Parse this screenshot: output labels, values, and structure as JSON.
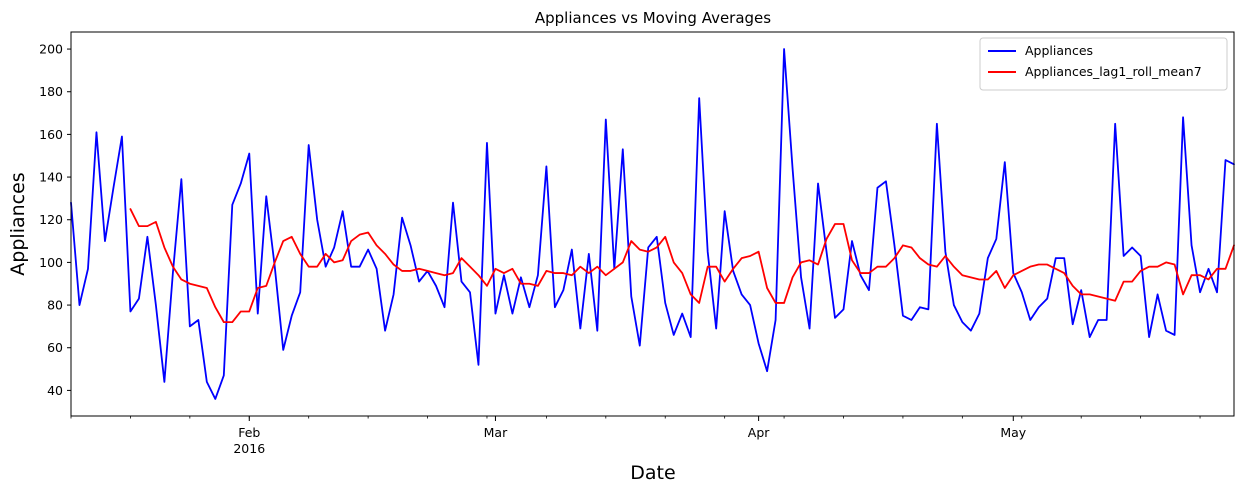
{
  "chart_data": {
    "type": "line",
    "title": "Appliances vs Moving Averages",
    "xlabel": "Date",
    "ylabel": "Appliances",
    "x_start": "2016-01-11",
    "x_end": "2016-05-27",
    "x_month_ticks": [
      {
        "date": "2016-02-01",
        "label": "Feb",
        "sublabel": "2016"
      },
      {
        "date": "2016-03-01",
        "label": "Mar",
        "sublabel": ""
      },
      {
        "date": "2016-04-01",
        "label": "Apr",
        "sublabel": ""
      },
      {
        "date": "2016-05-01",
        "label": "May",
        "sublabel": ""
      }
    ],
    "ylim": [
      28,
      208
    ],
    "yticks": [
      40,
      60,
      80,
      100,
      120,
      140,
      160,
      180,
      200
    ],
    "grid": false,
    "legend_position": "upper-right",
    "series": [
      {
        "name": "Appliances",
        "color": "#0000ff",
        "values": [
          128,
          80,
          97,
          161,
          110,
          135,
          159,
          77,
          83,
          112,
          80,
          44,
          95,
          139,
          70,
          73,
          44,
          36,
          47,
          127,
          137,
          151,
          76,
          131,
          98,
          59,
          75,
          86,
          155,
          120,
          98,
          107,
          124,
          98,
          98,
          106,
          97,
          68,
          85,
          121,
          108,
          91,
          96,
          89,
          79,
          128,
          91,
          86,
          52,
          156,
          76,
          94,
          76,
          93,
          79,
          94,
          145,
          79,
          87,
          106,
          69,
          104,
          68,
          167,
          97,
          153,
          84,
          61,
          107,
          112,
          81,
          66,
          76,
          65,
          177,
          105,
          69,
          124,
          96,
          85,
          80,
          62,
          49,
          73,
          200,
          144,
          93,
          69,
          137,
          105,
          74,
          78,
          110,
          94,
          87,
          135,
          138,
          108,
          75,
          73,
          79,
          78,
          165,
          105,
          80,
          72,
          68,
          76,
          102,
          111,
          147,
          95,
          86,
          73,
          79,
          83,
          102,
          102,
          71,
          87,
          65,
          73,
          73,
          165,
          103,
          107,
          103,
          65,
          85,
          68,
          66,
          168,
          108,
          86,
          97,
          86,
          148,
          146
        ]
      },
      {
        "name": "Appliances_lag1_roll_mean7",
        "color": "#ff0000",
        "start_index": 7,
        "values": [
          125,
          117,
          117,
          119,
          107,
          98,
          92,
          90,
          89,
          88,
          79,
          72,
          72,
          77,
          77,
          88,
          89,
          100,
          110,
          112,
          104,
          98,
          98,
          104,
          100,
          101,
          110,
          113,
          114,
          108,
          104,
          99,
          96,
          96,
          97,
          96,
          95,
          94,
          95,
          102,
          98,
          94,
          89,
          97,
          95,
          97,
          90,
          90,
          89,
          96,
          95,
          95,
          94,
          98,
          95,
          98,
          94,
          97,
          100,
          110,
          106,
          105,
          107,
          112,
          100,
          95,
          85,
          81,
          98,
          98,
          91,
          97,
          102,
          103,
          105,
          88,
          81,
          81,
          93,
          100,
          101,
          99,
          111,
          118,
          118,
          101,
          95,
          95,
          98,
          98,
          102,
          108,
          107,
          102,
          99,
          98,
          103,
          98,
          94,
          93,
          92,
          92,
          96,
          88,
          94,
          96,
          98,
          99,
          99,
          97,
          95,
          89,
          85,
          85,
          84,
          83,
          82,
          91,
          91,
          96,
          98,
          98,
          100,
          99,
          85,
          94,
          94,
          92,
          97,
          97,
          108
        ]
      }
    ]
  }
}
